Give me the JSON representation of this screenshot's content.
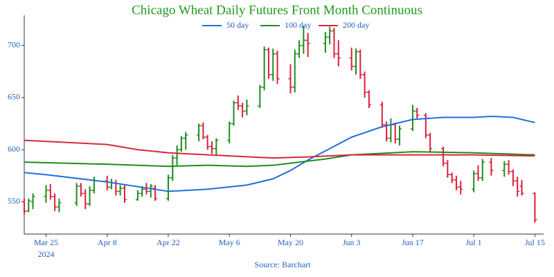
{
  "chart_data": {
    "type": "ohlc",
    "title": "Chicago Wheat Daily Futures Front Month Continuous",
    "source": "Source: Barchart",
    "x_year_label": "2024",
    "up_color": "#1e8c1e",
    "down_color": "#dc1e3c",
    "x": [
      "2024-03-20",
      "2024-03-21",
      "2024-03-22",
      "2024-03-25",
      "2024-03-26",
      "2024-03-27",
      "2024-03-28",
      "2024-04-01",
      "2024-04-02",
      "2024-04-03",
      "2024-04-04",
      "2024-04-05",
      "2024-04-08",
      "2024-04-09",
      "2024-04-10",
      "2024-04-11",
      "2024-04-12",
      "2024-04-15",
      "2024-04-16",
      "2024-04-17",
      "2024-04-18",
      "2024-04-19",
      "2024-04-22",
      "2024-04-23",
      "2024-04-24",
      "2024-04-25",
      "2024-04-26",
      "2024-04-29",
      "2024-04-30",
      "2024-05-01",
      "2024-05-02",
      "2024-05-03",
      "2024-05-06",
      "2024-05-07",
      "2024-05-08",
      "2024-05-09",
      "2024-05-10",
      "2024-05-13",
      "2024-05-14",
      "2024-05-15",
      "2024-05-16",
      "2024-05-17",
      "2024-05-20",
      "2024-05-21",
      "2024-05-22",
      "2024-05-23",
      "2024-05-24",
      "2024-05-28",
      "2024-05-29",
      "2024-05-30",
      "2024-05-31",
      "2024-06-03",
      "2024-06-04",
      "2024-06-05",
      "2024-06-06",
      "2024-06-07",
      "2024-06-10",
      "2024-06-11",
      "2024-06-12",
      "2024-06-13",
      "2024-06-14",
      "2024-06-17",
      "2024-06-18",
      "2024-06-20",
      "2024-06-21",
      "2024-06-24",
      "2024-06-25",
      "2024-06-26",
      "2024-06-27",
      "2024-06-28",
      "2024-07-01",
      "2024-07-02",
      "2024-07-03",
      "2024-07-05",
      "2024-07-08",
      "2024-07-09",
      "2024-07-10",
      "2024-07-11",
      "2024-07-12",
      "2024-07-15"
    ],
    "open": [
      550,
      541,
      550,
      555,
      561,
      555,
      545,
      549,
      565,
      558,
      548,
      561,
      570,
      564,
      568,
      560,
      563,
      552,
      558,
      562,
      560,
      563,
      553,
      573,
      592,
      600,
      611,
      614,
      623,
      612,
      603,
      601,
      609,
      625,
      645,
      642,
      637,
      642,
      660,
      696,
      672,
      692,
      668,
      660,
      692,
      700,
      705,
      702,
      708,
      714,
      692,
      688,
      680,
      694,
      672,
      655,
      643,
      624,
      611,
      624,
      610,
      620,
      637,
      633,
      614,
      601,
      587,
      576,
      571,
      564,
      562,
      577,
      573,
      588,
      580,
      586,
      579,
      570,
      565,
      558
    ],
    "high": [
      553,
      553,
      558,
      566,
      567,
      558,
      553,
      568,
      568,
      562,
      565,
      574,
      575,
      572,
      571,
      566,
      566,
      561,
      565,
      568,
      567,
      566,
      576,
      595,
      604,
      613,
      617,
      625,
      626,
      614,
      608,
      611,
      627,
      647,
      652,
      645,
      648,
      662,
      699,
      698,
      697,
      695,
      682,
      696,
      705,
      719,
      712,
      713,
      718,
      717,
      705,
      698,
      697,
      696,
      675,
      657,
      646,
      627,
      630,
      626,
      623,
      643,
      640,
      635,
      616,
      603,
      590,
      578,
      575,
      570,
      580,
      585,
      591,
      592,
      589,
      590,
      581,
      574,
      571,
      559
    ],
    "low": [
      538,
      540,
      543,
      549,
      552,
      541,
      540,
      546,
      555,
      543,
      546,
      558,
      561,
      562,
      556,
      556,
      549,
      551,
      555,
      557,
      554,
      551,
      551,
      570,
      585,
      598,
      600,
      608,
      610,
      600,
      596,
      595,
      606,
      623,
      638,
      631,
      633,
      640,
      657,
      668,
      666,
      663,
      654,
      655,
      688,
      692,
      689,
      693,
      701,
      688,
      680,
      676,
      672,
      668,
      650,
      640,
      621,
      608,
      607,
      606,
      604,
      618,
      630,
      611,
      598,
      584,
      573,
      568,
      561,
      557,
      559,
      570,
      570,
      575,
      574,
      576,
      565,
      555,
      556,
      530
    ],
    "close": [
      541,
      551,
      555,
      561,
      555,
      545,
      549,
      565,
      558,
      548,
      561,
      570,
      564,
      568,
      560,
      563,
      552,
      558,
      562,
      560,
      565,
      553,
      573,
      592,
      600,
      611,
      614,
      623,
      612,
      603,
      601,
      609,
      625,
      645,
      642,
      637,
      642,
      660,
      696,
      672,
      692,
      668,
      660,
      692,
      700,
      705,
      702,
      708,
      714,
      692,
      688,
      680,
      694,
      672,
      655,
      643,
      624,
      611,
      624,
      610,
      620,
      637,
      633,
      614,
      601,
      587,
      576,
      571,
      564,
      562,
      577,
      573,
      588,
      580,
      586,
      579,
      570,
      560,
      558,
      533
    ],
    "series": [
      {
        "name": "50 day",
        "color": "#1f6fdc",
        "x": [
          "2024-03-20",
          "2024-03-25",
          "2024-04-08",
          "2024-04-22",
          "2024-05-01",
          "2024-05-10",
          "2024-05-16",
          "2024-05-20",
          "2024-05-24",
          "2024-05-29",
          "2024-06-03",
          "2024-06-10",
          "2024-06-17",
          "2024-06-24",
          "2024-07-01",
          "2024-07-05",
          "2024-07-10",
          "2024-07-15"
        ],
        "values": [
          578,
          576,
          569,
          560,
          562,
          566,
          572,
          580,
          590,
          601,
          612,
          622,
          629,
          631,
          631,
          632,
          631,
          626
        ]
      },
      {
        "name": "100 day",
        "color": "#1e8c1e",
        "x": [
          "2024-03-20",
          "2024-04-08",
          "2024-04-22",
          "2024-05-01",
          "2024-05-10",
          "2024-05-16",
          "2024-05-20",
          "2024-05-28",
          "2024-06-03",
          "2024-06-17",
          "2024-07-01",
          "2024-07-15"
        ],
        "values": [
          588,
          586,
          584,
          585,
          584,
          585,
          587,
          591,
          595,
          598,
          597,
          595
        ]
      },
      {
        "name": "200 day",
        "color": "#d6283b",
        "x": [
          "2024-03-20",
          "2024-04-08",
          "2024-04-15",
          "2024-04-22",
          "2024-05-06",
          "2024-05-16",
          "2024-05-24",
          "2024-06-03",
          "2024-06-17",
          "2024-07-01",
          "2024-07-15"
        ],
        "values": [
          609,
          605,
          600,
          597,
          594,
          592,
          593,
          595,
          595,
          595,
          594
        ]
      }
    ],
    "xlim": [
      "2024-03-20",
      "2024-07-17"
    ],
    "xticks": [
      {
        "value": "2024-03-25",
        "label": "Mar 25"
      },
      {
        "value": "2024-04-08",
        "label": "Apr 8"
      },
      {
        "value": "2024-04-22",
        "label": "Apr 22"
      },
      {
        "value": "2024-05-06",
        "label": "May 6"
      },
      {
        "value": "2024-05-20",
        "label": "May 20"
      },
      {
        "value": "2024-06-03",
        "label": "Jun 3"
      },
      {
        "value": "2024-06-17",
        "label": "Jun 17"
      },
      {
        "value": "2024-07-01",
        "label": "Jul 1"
      },
      {
        "value": "2024-07-15",
        "label": "Jul 15"
      }
    ],
    "ylim": [
      519,
      729
    ],
    "yticks": [
      550,
      600,
      650,
      700
    ]
  }
}
